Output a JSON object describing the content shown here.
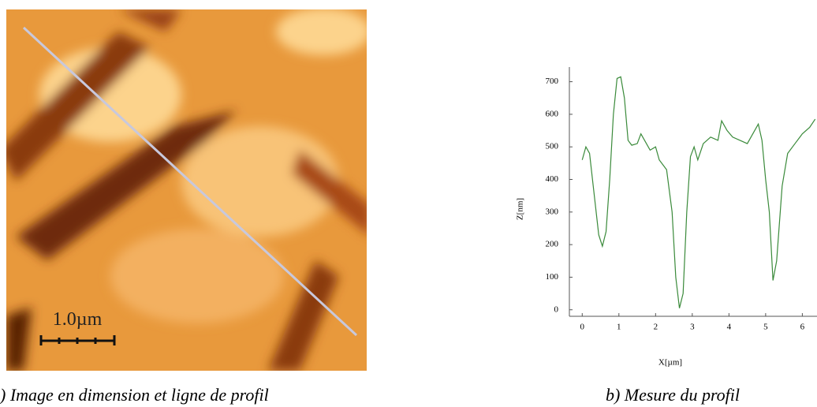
{
  "image": {
    "scale_label": "1.0µm",
    "caption": ") Image en dimension et ligne de profil"
  },
  "chart_data": {
    "type": "line",
    "caption": "b) Mesure du profil",
    "xlabel": "X[µm]",
    "ylabel": "Z[nm]",
    "x": [
      0,
      0.1,
      0.2,
      0.3,
      0.45,
      0.55,
      0.65,
      0.75,
      0.85,
      0.95,
      1.05,
      1.15,
      1.25,
      1.35,
      1.5,
      1.6,
      1.7,
      1.85,
      2.0,
      2.1,
      2.3,
      2.45,
      2.55,
      2.65,
      2.75,
      2.85,
      2.95,
      3.05,
      3.15,
      3.3,
      3.5,
      3.7,
      3.8,
      3.95,
      4.1,
      4.3,
      4.5,
      4.7,
      4.8,
      4.9,
      5.0,
      5.1,
      5.2,
      5.3,
      5.45,
      5.6,
      5.8,
      6.0,
      6.2,
      6.35
    ],
    "values": [
      460,
      500,
      480,
      380,
      230,
      195,
      240,
      400,
      600,
      710,
      715,
      650,
      520,
      505,
      510,
      540,
      520,
      490,
      500,
      460,
      430,
      300,
      100,
      5,
      50,
      300,
      470,
      500,
      460,
      510,
      530,
      520,
      580,
      550,
      530,
      520,
      510,
      550,
      570,
      520,
      400,
      300,
      90,
      150,
      380,
      480,
      510,
      540,
      560,
      585
    ],
    "color": "#3a8a3a",
    "xlim": [
      -0.35,
      6.4
    ],
    "ylim": [
      -20,
      745
    ],
    "xticks": [
      0,
      1,
      2,
      3,
      4,
      5,
      6
    ],
    "yticks": [
      0,
      100,
      200,
      300,
      400,
      500,
      600,
      700
    ]
  }
}
